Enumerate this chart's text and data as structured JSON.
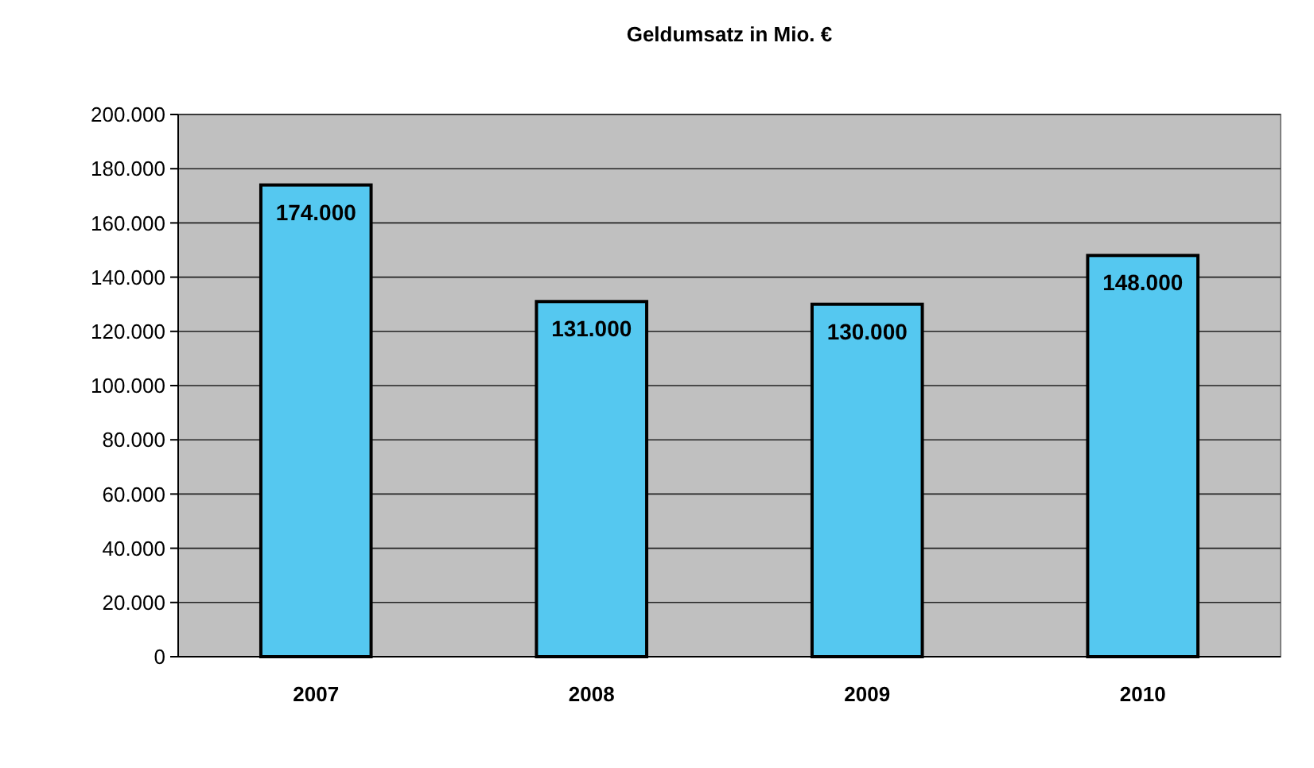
{
  "chart_data": {
    "type": "bar",
    "title": "Geldumsatz in Mio. €",
    "categories": [
      "2007",
      "2008",
      "2009",
      "2010"
    ],
    "values": [
      174000,
      131000,
      130000,
      148000
    ],
    "value_labels": [
      "174.000",
      "131.000",
      "130.000",
      "148.000"
    ],
    "color": "#55c8f0",
    "ylim": [
      0,
      200000
    ],
    "yticks": [
      {
        "value": 0,
        "label": "0"
      },
      {
        "value": 20000,
        "label": "20.000"
      },
      {
        "value": 40000,
        "label": "40.000"
      },
      {
        "value": 60000,
        "label": "60.000"
      },
      {
        "value": 80000,
        "label": "80.000"
      },
      {
        "value": 100000,
        "label": "100.000"
      },
      {
        "value": 120000,
        "label": "120.000"
      },
      {
        "value": 140000,
        "label": "140.000"
      },
      {
        "value": 160000,
        "label": "160.000"
      },
      {
        "value": 180000,
        "label": "180.000"
      },
      {
        "value": 200000,
        "label": "200.000"
      }
    ],
    "grid": "y"
  }
}
